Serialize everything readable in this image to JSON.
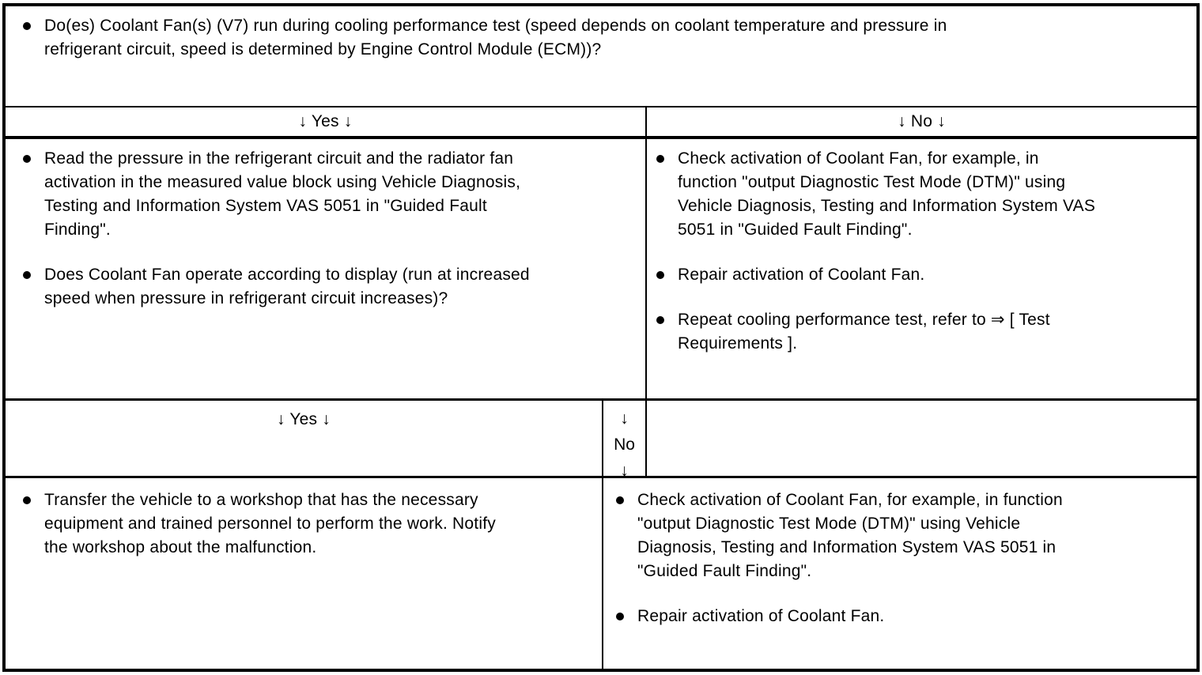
{
  "document": {
    "type": "diagnostic-decision-table",
    "question": {
      "items": [
        "Do(es) Coolant Fan(s) (V7) run during cooling performance test (speed depends on coolant temperature and pressure in\nrefrigerant circuit, speed is determined by Engine Control Module (ECM))?"
      ]
    },
    "branch1": {
      "yes_label": "↓ Yes ↓",
      "no_label": "↓ No ↓",
      "yes_items": [
        "Read the pressure in the refrigerant circuit and the radiator fan\nactivation in the measured value block using Vehicle Diagnosis,\nTesting and Information System VAS 5051 in \"Guided Fault\nFinding\".",
        "Does Coolant Fan operate according to display (run at increased\nspeed when pressure in refrigerant circuit increases)?"
      ],
      "no_items": [
        "Check activation of Coolant Fan, for example, in\nfunction \"output Diagnostic Test Mode (DTM)\" using\nVehicle Diagnosis, Testing and Information System VAS\n5051 in \"Guided Fault Finding\".",
        "Repair activation of Coolant Fan.",
        "Repeat cooling performance test, refer to ⇒ [ Test\nRequirements ]."
      ]
    },
    "branch2": {
      "yes_label": "↓ Yes ↓",
      "no_label_line1": "↓",
      "no_label_line2": "No",
      "no_label_line3": "↓",
      "yes_items": [
        "Transfer the vehicle to a workshop that has the necessary\nequipment and trained personnel to perform the work. Notify\nthe workshop about the malfunction."
      ],
      "no_items": [
        "Check activation of Coolant Fan, for example, in function\n\"output Diagnostic Test Mode (DTM)\" using Vehicle\nDiagnosis, Testing and Information System VAS 5051 in\n\"Guided Fault Finding\".",
        "Repair activation of Coolant Fan."
      ]
    },
    "colors": {
      "border": "#000000",
      "background": "#ffffff",
      "text": "#000000"
    }
  }
}
